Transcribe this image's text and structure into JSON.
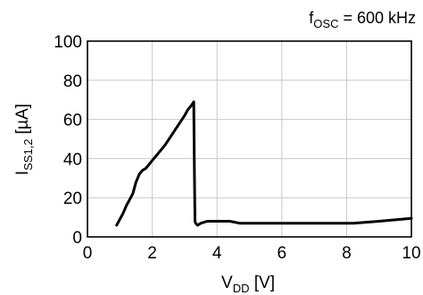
{
  "chart_data": {
    "type": "line",
    "annotation": {
      "main": "f",
      "sub": "OSC",
      "rest": " = 600 kHz"
    },
    "xlabel": {
      "main": "V",
      "sub": "DD",
      "rest": " [V]"
    },
    "ylabel": {
      "main": "I",
      "sub": "SS1,2",
      "rest": " [µA]"
    },
    "xlim": [
      0,
      10
    ],
    "ylim": [
      0,
      100
    ],
    "xticks": [
      0,
      2,
      4,
      6,
      8,
      10
    ],
    "yticks": [
      0,
      20,
      40,
      60,
      80,
      100
    ],
    "grid": true,
    "series": [
      {
        "color": "#000000",
        "x": [
          0.9,
          1.0,
          1.1,
          1.2,
          1.3,
          1.4,
          1.5,
          1.6,
          1.7,
          1.8,
          1.9,
          2.0,
          2.2,
          2.4,
          2.6,
          2.8,
          3.0,
          3.1,
          3.2,
          3.28,
          3.3,
          3.32,
          3.34,
          3.4,
          3.5,
          3.7,
          4.0,
          4.4,
          4.7,
          5.0,
          6.0,
          7.0,
          8.0,
          8.2,
          9.0,
          10.0
        ],
        "y": [
          6,
          9,
          12,
          16,
          19,
          22,
          28,
          32,
          34,
          35,
          37,
          39,
          43,
          47,
          52,
          57,
          62,
          65,
          67,
          69,
          35,
          8,
          7,
          6,
          7,
          8,
          8,
          8,
          7,
          7,
          7,
          7,
          7,
          7,
          8,
          9.5
        ]
      }
    ]
  }
}
